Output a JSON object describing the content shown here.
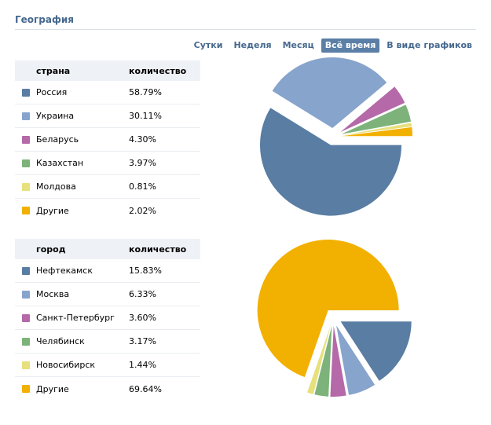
{
  "section_title": "География",
  "tabs": [
    {
      "label": "Сутки",
      "active": false
    },
    {
      "label": "Неделя",
      "active": false
    },
    {
      "label": "Месяц",
      "active": false
    },
    {
      "label": "Всё время",
      "active": true
    },
    {
      "label": "В виде графиков",
      "active": false
    }
  ],
  "chart_data": [
    {
      "type": "pie",
      "header": {
        "col1": "страна",
        "col2": "количество"
      },
      "categories": [
        "Россия",
        "Украина",
        "Беларусь",
        "Казахстан",
        "Молдова",
        "Другие"
      ],
      "values": [
        58.79,
        30.11,
        4.3,
        3.97,
        0.81,
        2.02
      ],
      "value_labels": [
        "58.79%",
        "30.11%",
        "4.30%",
        "3.97%",
        "0.81%",
        "2.02%"
      ],
      "colors": [
        "#597da3",
        "#87a4cc",
        "#b569a8",
        "#7db37b",
        "#e6e07d",
        "#f2b000"
      ]
    },
    {
      "type": "pie",
      "header": {
        "col1": "город",
        "col2": "количество"
      },
      "categories": [
        "Нефтекамск",
        "Москва",
        "Санкт-Петербург",
        "Челябинск",
        "Новосибирск",
        "Другие"
      ],
      "values": [
        15.83,
        6.33,
        3.6,
        3.17,
        1.44,
        69.64
      ],
      "value_labels": [
        "15.83%",
        "6.33%",
        "3.60%",
        "3.17%",
        "1.44%",
        "69.64%"
      ],
      "colors": [
        "#597da3",
        "#87a4cc",
        "#b569a8",
        "#7db37b",
        "#e6e07d",
        "#f2b000"
      ]
    }
  ]
}
